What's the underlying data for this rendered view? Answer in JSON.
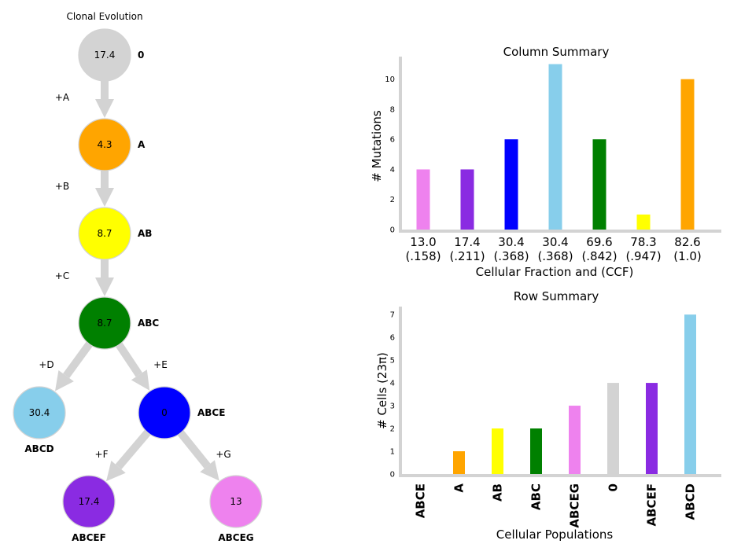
{
  "tree": {
    "title": "Clonal Evolution",
    "node_color": "#d3d3d3",
    "edge_color": "#d3d3d3",
    "nodes": [
      {
        "id": "0",
        "label": "0",
        "value": "17.4",
        "color": "#d3d3d3"
      },
      {
        "id": "A",
        "label": "A",
        "value": "4.3",
        "color": "#ffa500"
      },
      {
        "id": "AB",
        "label": "AB",
        "value": "8.7",
        "color": "#ffff00"
      },
      {
        "id": "ABC",
        "label": "ABC",
        "value": "8.7",
        "color": "#008000"
      },
      {
        "id": "ABCD",
        "label": "ABCD",
        "value": "30.4",
        "color": "#87ceeb"
      },
      {
        "id": "ABCE",
        "label": "ABCE",
        "value": "0",
        "color": "#0000ff"
      },
      {
        "id": "ABCEF",
        "label": "ABCEF",
        "value": "17.4",
        "color": "#8a2be2"
      },
      {
        "id": "ABCEG",
        "label": "ABCEG",
        "value": "13",
        "color": "#ee82ee"
      }
    ],
    "edges": [
      {
        "from": "0",
        "to": "A",
        "label": "+A"
      },
      {
        "from": "A",
        "to": "AB",
        "label": "+B"
      },
      {
        "from": "AB",
        "to": "ABC",
        "label": "+C"
      },
      {
        "from": "ABC",
        "to": "ABCD",
        "label": "+D"
      },
      {
        "from": "ABC",
        "to": "ABCE",
        "label": "+E"
      },
      {
        "from": "ABCE",
        "to": "ABCEF",
        "label": "+F"
      },
      {
        "from": "ABCE",
        "to": "ABCEG",
        "label": "+G"
      }
    ]
  },
  "chart_data": [
    {
      "type": "bar",
      "title": "Column Summary",
      "xlabel": "Cellular Fraction and (CCF)",
      "ylabel": "# Mutations",
      "categories": [
        "13.0\n(.158)",
        "17.4\n(.211)",
        "30.4\n(.368)",
        "30.4\n(.368)",
        "69.6\n(.842)",
        "78.3\n(.947)",
        "82.6\n(1.0)"
      ],
      "values": [
        4,
        4,
        6,
        11,
        6,
        1,
        10
      ],
      "colors": [
        "#ee82ee",
        "#8a2be2",
        "#0000ff",
        "#87ceeb",
        "#008000",
        "#ffff00",
        "#ffa500"
      ],
      "yticks": [
        0,
        2,
        4,
        6,
        8,
        10
      ],
      "ylim": [
        0,
        11.5
      ],
      "grid": false
    },
    {
      "type": "bar",
      "title": "Row Summary",
      "xlabel": "Cellular Populations",
      "ylabel": "# Cells (23π)",
      "categories": [
        "ABCE",
        "A",
        "AB",
        "ABC",
        "ABCEG",
        "0",
        "ABCEF",
        "ABCD"
      ],
      "values": [
        0,
        1,
        2,
        2,
        3,
        4,
        4,
        7
      ],
      "colors": [
        "#0000ff",
        "#ffa500",
        "#ffff00",
        "#008000",
        "#ee82ee",
        "#d3d3d3",
        "#8a2be2",
        "#87ceeb"
      ],
      "yticks": [
        0,
        1,
        2,
        3,
        4,
        5,
        6,
        7
      ],
      "ylim": [
        0,
        7.35
      ],
      "grid": false
    }
  ]
}
